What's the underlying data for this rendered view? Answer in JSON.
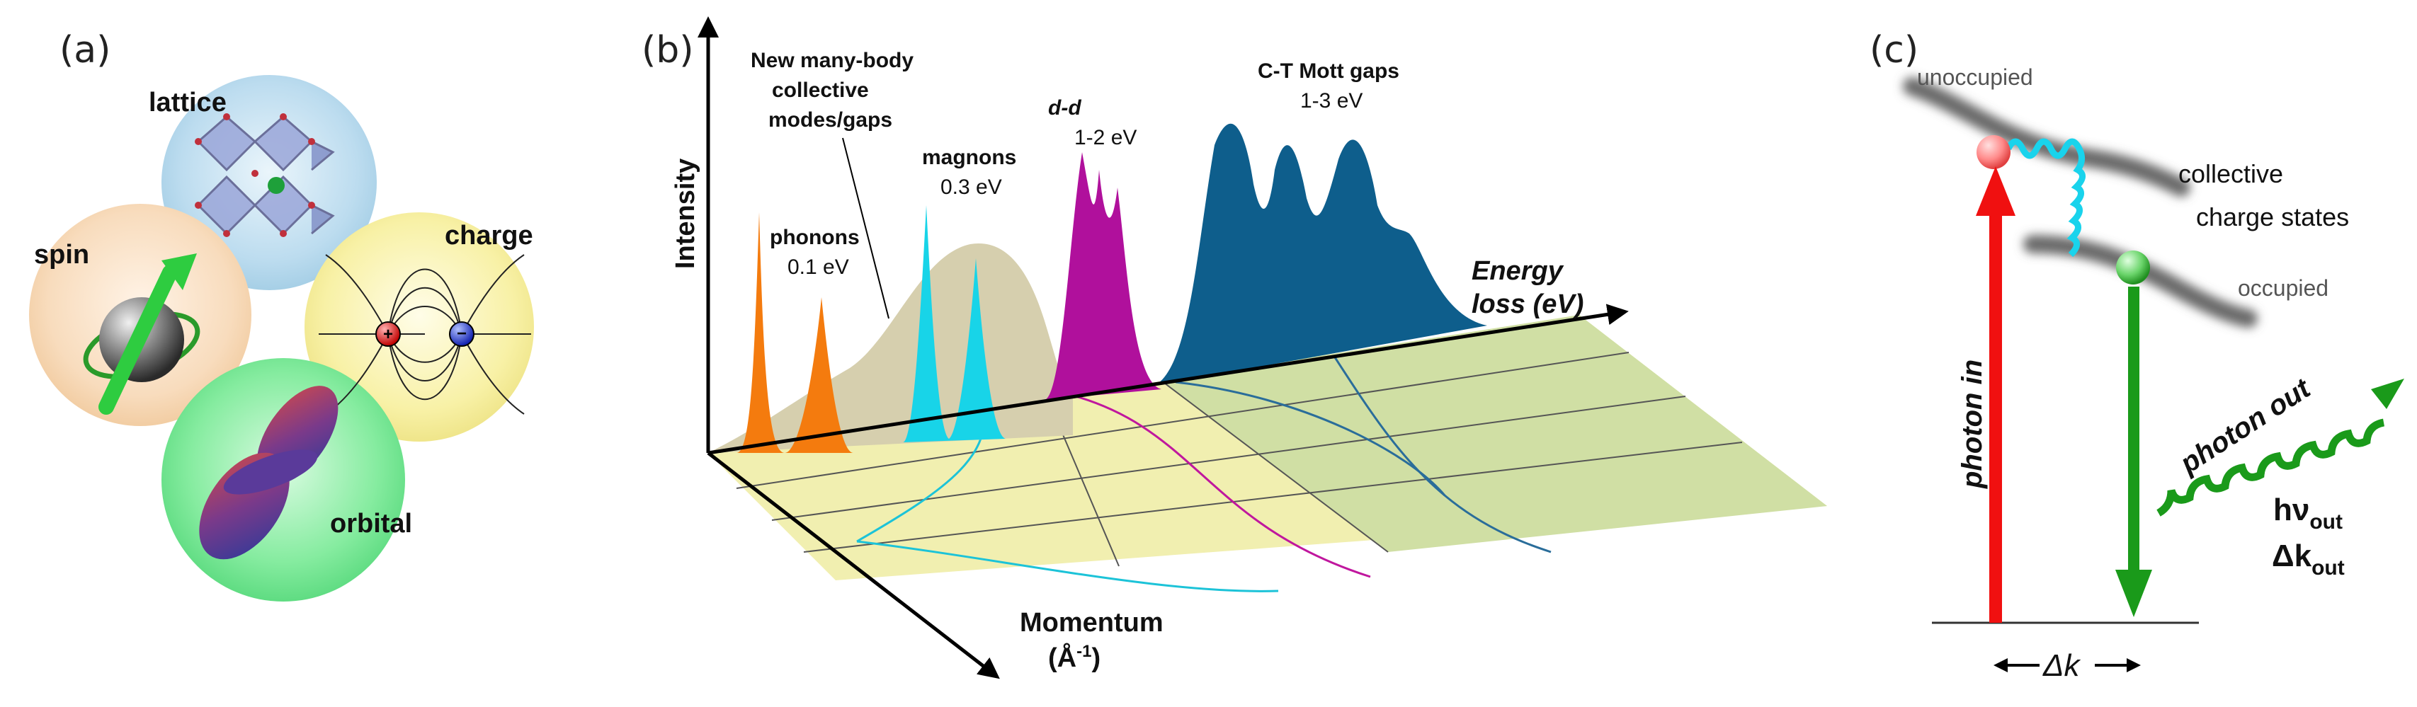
{
  "panel_a": {
    "label": "(a)",
    "spheres": {
      "lattice": "lattice",
      "spin": "spin",
      "charge": "charge",
      "orbital": "orbital"
    },
    "colors": {
      "lattice": "#b9dbef",
      "spin": "#f8d8b4",
      "charge": "#f7f1a8",
      "orbital": "#7fe89a"
    }
  },
  "panel_b": {
    "label": "(b)",
    "y_axis": "Intensity",
    "x_axis_line1": "Energy",
    "x_axis_line2": "loss (eV)",
    "depth_axis_line1": "Momentum",
    "depth_axis_line2": "(Å",
    "depth_axis_exp": "-1",
    "depth_axis_end": ")",
    "annotations": {
      "many_body_1": "New many-body",
      "many_body_2": "collective",
      "many_body_3": "modes/gaps",
      "phonons": "phonons",
      "phonons_val": "0.1 eV",
      "magnons": "magnons",
      "magnons_val": "0.3 eV",
      "dd": "d-d",
      "dd_val": "1-2 eV",
      "ct": "C-T Mott gaps",
      "ct_val": "1-3 eV"
    },
    "colors": {
      "phonons": "#f47b0e",
      "magnons": "#18d4e8",
      "dd": "#b0109c",
      "ct": "#0e5e8c",
      "background": "#d6cfae"
    }
  },
  "panel_c": {
    "label": "(c)",
    "unoccupied": "unoccupied",
    "occupied": "occupied",
    "collective_1": "collective",
    "collective_2": "charge states",
    "photon_in": "photon in",
    "photon_out": "photon out",
    "hv": "hν",
    "hv_sub": "out",
    "dk": "Δk",
    "dk_sub": "out",
    "delta_k": "Δk",
    "colors": {
      "in": "#f01010",
      "out": "#1a9a1a",
      "wave": "#19d3ec"
    }
  }
}
